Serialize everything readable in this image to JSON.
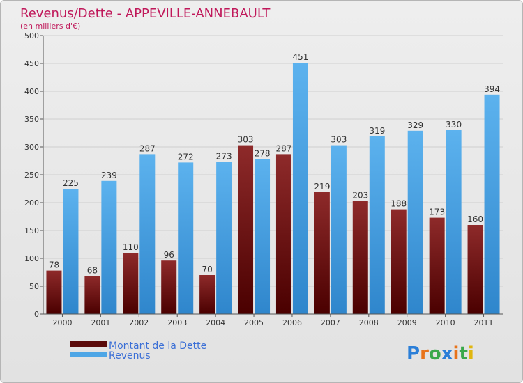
{
  "chart_data": {
    "type": "bar",
    "title": "Revenus/Dette - APPEVILLE-ANNEBAULT",
    "subtitle": "(en milliers d'€)",
    "categories": [
      "2000",
      "2001",
      "2002",
      "2003",
      "2004",
      "2005",
      "2006",
      "2007",
      "2008",
      "2009",
      "2010",
      "2011"
    ],
    "series": [
      {
        "name": "Montant de la Dette",
        "values": [
          78,
          68,
          110,
          96,
          70,
          303,
          287,
          219,
          203,
          188,
          173,
          160
        ],
        "color": "#7a1414"
      },
      {
        "name": "Revenus",
        "values": [
          225,
          239,
          287,
          272,
          273,
          278,
          451,
          303,
          319,
          329,
          330,
          394
        ],
        "color": "#4ea6e6"
      }
    ],
    "ylim": [
      0,
      500
    ],
    "yticks": [
      0,
      50,
      100,
      150,
      200,
      250,
      300,
      350,
      400,
      450,
      500
    ],
    "grid": true,
    "legend_position": "bottom-left",
    "title_color": "#c0185a"
  },
  "logo": {
    "text": "Proxiti"
  }
}
